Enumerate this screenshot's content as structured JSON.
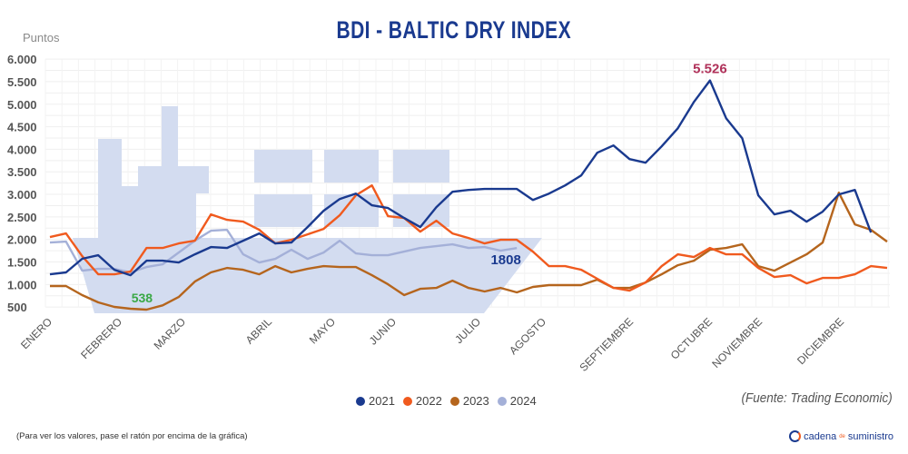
{
  "chart_data": {
    "type": "line",
    "title": "BDI - BALTIC DRY INDEX",
    "ylabel": "Puntos",
    "xlabel": "",
    "ylim": [
      500,
      6000
    ],
    "yticks": [
      "6.000",
      "5.500",
      "5.000",
      "4.500",
      "4.000",
      "3.500",
      "3.000",
      "2.500",
      "2.000",
      "1.500",
      "1.000",
      "500"
    ],
    "ytick_values": [
      6000,
      5500,
      5000,
      4500,
      4000,
      3500,
      3000,
      2500,
      2000,
      1500,
      1000,
      500
    ],
    "x_labels": [
      "ENERO",
      "FEBRERO",
      "MARZO",
      "ABRIL",
      "MAYO",
      "JUNIO",
      "JULIO",
      "AGOSTO",
      "SEPTIEMBRE",
      "OCTUBRE",
      "NOVIEMBRE",
      "DICIEMBRE"
    ],
    "grid": true,
    "legend_position": "bottom",
    "series": [
      {
        "name": "2021",
        "color": "#1a3a8f",
        "values": [
          1227,
          1268,
          1570,
          1650,
          1328,
          1207,
          1529,
          1529,
          1489,
          1670,
          1831,
          1811,
          1972,
          2133,
          1912,
          1932,
          2274,
          2636,
          2897,
          3018,
          2757,
          2696,
          2475,
          2274,
          2716,
          3058,
          3098,
          3119,
          3119,
          3119,
          2877,
          3018,
          3199,
          3420,
          3923,
          4084,
          3783,
          3702,
          4064,
          4466,
          5050,
          5526,
          4688,
          4245,
          2978,
          2555,
          2636,
          2394,
          2616,
          2998,
          3098,
          2153
        ]
      },
      {
        "name": "2022",
        "color": "#f05a1e",
        "values": [
          2052,
          2133,
          1630,
          1227,
          1227,
          1288,
          1811,
          1811,
          1912,
          1972,
          2555,
          2435,
          2394,
          2213,
          1912,
          1992,
          2113,
          2233,
          2535,
          2978,
          3199,
          2515,
          2475,
          2173,
          2414,
          2133,
          2032,
          1912,
          1992,
          1992,
          1730,
          1408,
          1408,
          1328,
          1127,
          926,
          865,
          1046,
          1408,
          1670,
          1610,
          1811,
          1670,
          1670,
          1368,
          1167,
          1207,
          1026,
          1147,
          1147,
          1227,
          1408,
          1368
        ]
      },
      {
        "name": "2023",
        "color": "#b5651d",
        "values": [
          966,
          966,
          765,
          604,
          503,
          463,
          443,
          538,
          724,
          1066,
          1268,
          1368,
          1328,
          1227,
          1408,
          1268,
          1348,
          1408,
          1388,
          1388,
          1207,
          1006,
          765,
          905,
          925,
          1086,
          925,
          845,
          925,
          825,
          946,
          986,
          986,
          986,
          1107,
          925,
          925,
          1046,
          1227,
          1429,
          1529,
          1771,
          1811,
          1891,
          1408,
          1308,
          1489,
          1670,
          1932,
          3038,
          2334,
          2213,
          1952
        ]
      },
      {
        "name": "2024",
        "color": "#a4b0d8",
        "values": [
          1932,
          1952,
          1308,
          1348,
          1348,
          1268,
          1388,
          1449,
          1710,
          1972,
          2193,
          2213,
          1670,
          1489,
          1569,
          1771,
          1569,
          1710,
          1972,
          1690,
          1650,
          1650,
          1730,
          1811,
          1851,
          1891,
          1811,
          1831,
          1750,
          1808
        ]
      }
    ],
    "annotations": [
      {
        "text": "5.526",
        "series": "2021",
        "color": "#b0325a"
      },
      {
        "text": "538",
        "series": "2023",
        "color": "#3aa845"
      },
      {
        "text": "1808",
        "series": "2024",
        "color": "#1a3a8f"
      }
    ]
  },
  "source": "(Fuente: Trading Economic)",
  "note": "(Para ver los valores, pase el ratón por encima de la gráfica)",
  "logo": {
    "main": "cadena",
    "small": "de",
    "end": "suministro"
  }
}
